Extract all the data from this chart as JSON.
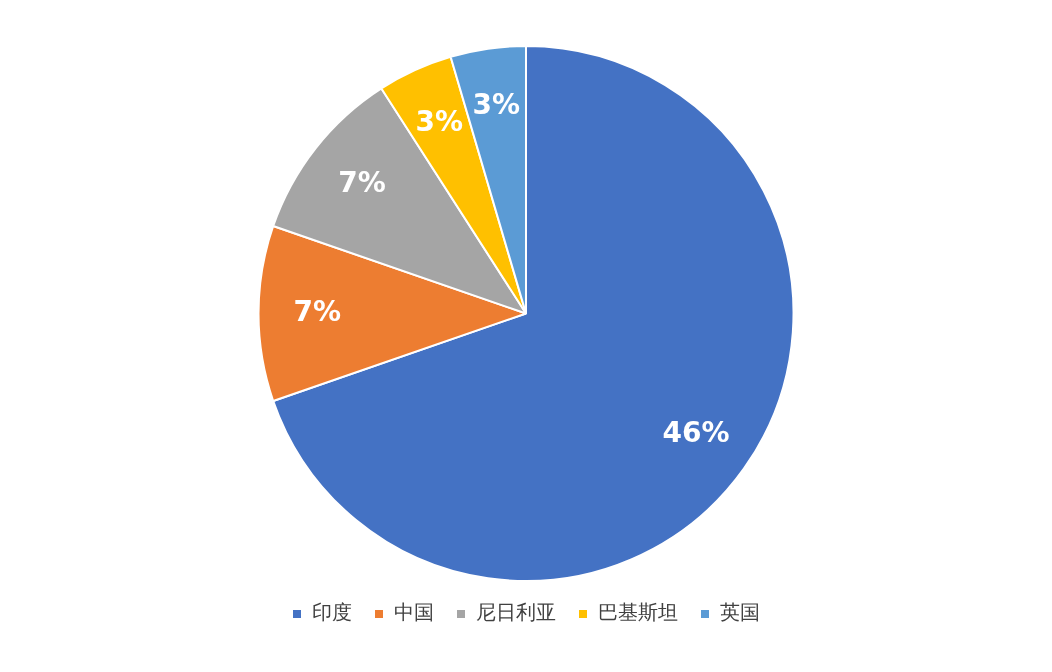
{
  "chart_data": {
    "type": "pie",
    "categories": [
      "印度",
      "中国",
      "尼日利亚",
      "巴基斯坦",
      "英国"
    ],
    "values": [
      46,
      7,
      7,
      3,
      3
    ],
    "value_labels": [
      "46%",
      "7%",
      "7%",
      "3%",
      "3%"
    ],
    "colors": [
      "#4472c4",
      "#ed7d31",
      "#a5a5a5",
      "#ffc000",
      "#5b9bd5"
    ],
    "legend": "bottom"
  }
}
